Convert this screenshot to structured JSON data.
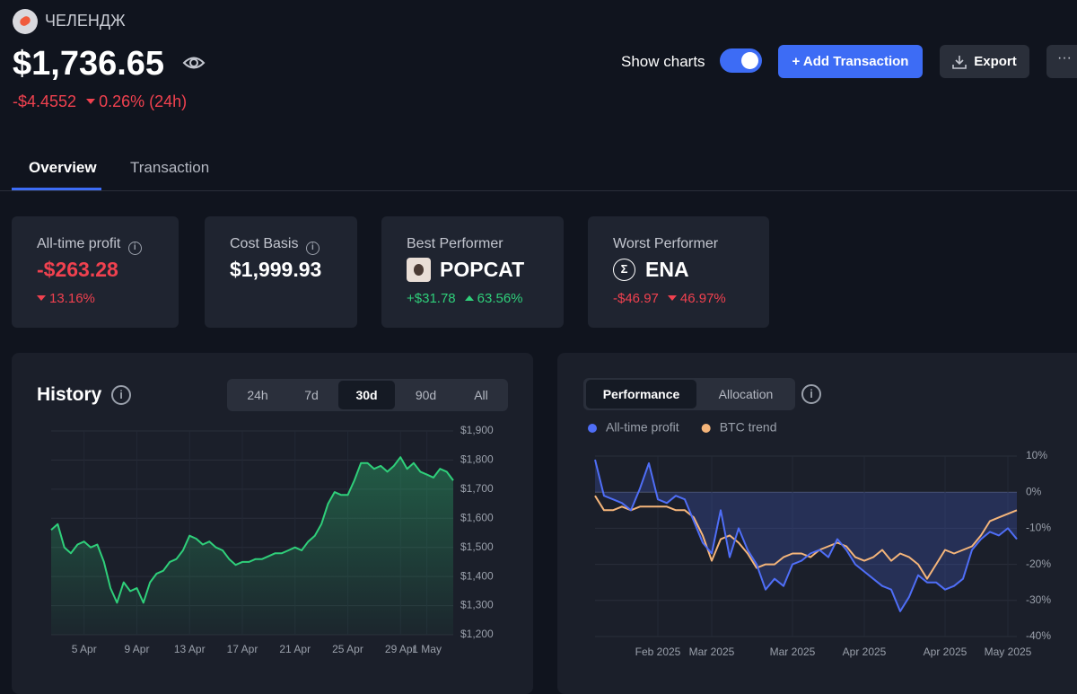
{
  "header": {
    "portfolio": "ЧЕЛЕНДЖ",
    "balance": "$1,736.65",
    "change": "-$4.4552",
    "change_pct": "0.26% (24h)"
  },
  "toolbar": {
    "show_charts": "Show charts",
    "add": "+ Add Transaction",
    "export": "Export"
  },
  "tabs": [
    "Overview",
    "Transaction"
  ],
  "cards": [
    {
      "label": "All-time profit",
      "value": "-$263.28",
      "change_pct": "13.16%"
    },
    {
      "label": "Cost Basis",
      "value": "$1,999.93"
    },
    {
      "label": "Best Performer",
      "asset": "POPCAT",
      "change": "+$31.78",
      "change_pct": "63.56%"
    },
    {
      "label": "Worst Performer",
      "asset": "ENA",
      "change": "-$46.97",
      "change_pct": "46.97%"
    }
  ],
  "history_ranges": [
    "24h",
    "7d",
    "30d",
    "90d",
    "All"
  ],
  "chart_tabs": [
    "Performance",
    "Allocation"
  ],
  "chart_data": [
    {
      "type": "line",
      "title": "History",
      "categories": [
        null,
        null,
        null,
        null,
        null,
        "5 Apr",
        null,
        null,
        null,
        null,
        null,
        null,
        null,
        "9 Apr",
        null,
        null,
        null,
        null,
        null,
        null,
        null,
        "13 Apr",
        null,
        null,
        null,
        null,
        null,
        null,
        null,
        "17 Apr",
        null,
        null,
        null,
        null,
        null,
        null,
        null,
        "21 Apr",
        null,
        null,
        null,
        null,
        null,
        null,
        null,
        "25 Apr",
        null,
        null,
        null,
        null,
        null,
        null,
        null,
        "29 Apr",
        null,
        null,
        null,
        "1 May",
        null,
        null,
        null,
        null
      ],
      "series": [
        {
          "color": "#2fcf7a",
          "area": true,
          "values": [
            1560,
            1580,
            1500,
            1480,
            1510,
            1520,
            1500,
            1510,
            1450,
            1360,
            1310,
            1380,
            1350,
            1360,
            1310,
            1380,
            1410,
            1420,
            1450,
            1460,
            1490,
            1540,
            1530,
            1510,
            1520,
            1500,
            1490,
            1460,
            1440,
            1450,
            1450,
            1460,
            1460,
            1470,
            1480,
            1480,
            1490,
            1500,
            1490,
            1520,
            1540,
            1580,
            1650,
            1690,
            1680,
            1680,
            1730,
            1790,
            1790,
            1770,
            1780,
            1760,
            1780,
            1810,
            1770,
            1790,
            1760,
            1750,
            1740,
            1770,
            1760,
            1730
          ]
        }
      ],
      "ylim": [
        1200,
        1900
      ],
      "yticks": [
        {
          "value": 1200,
          "label": "$1,200"
        },
        {
          "value": 1300,
          "label": "$1,300"
        },
        {
          "value": 1400,
          "label": "$1,400"
        },
        {
          "value": 1500,
          "label": "$1,500"
        },
        {
          "value": 1600,
          "label": "$1,600"
        },
        {
          "value": 1700,
          "label": "$1,700"
        },
        {
          "value": 1800,
          "label": "$1,800"
        },
        {
          "value": 1900,
          "label": "$1,900"
        }
      ],
      "grid": true
    },
    {
      "type": "line",
      "categories": [
        null,
        null,
        null,
        null,
        null,
        null,
        null,
        "Feb 2025",
        null,
        null,
        null,
        null,
        null,
        "Mar 2025",
        null,
        null,
        null,
        null,
        null,
        null,
        null,
        null,
        "Mar 2025",
        null,
        null,
        null,
        null,
        null,
        null,
        null,
        "Apr 2025",
        null,
        null,
        null,
        null,
        null,
        null,
        null,
        null,
        "Apr 2025",
        null,
        null,
        null,
        null,
        null,
        null,
        "May 2025",
        null
      ],
      "series": [
        {
          "name": "All-time profit",
          "color": "#4f6ef7",
          "area": true,
          "values": [
            9,
            -1,
            -2,
            -3,
            -5,
            1,
            8,
            -2,
            -3,
            -1,
            -2,
            -8,
            -14,
            -17,
            -5,
            -18,
            -10,
            -16,
            -20,
            -27,
            -24,
            -26,
            -20,
            -19,
            -17,
            -16,
            -18,
            -13,
            -16,
            -20,
            -22,
            -24,
            -26,
            -27,
            -33,
            -29,
            -23,
            -25,
            -25,
            -27,
            -26,
            -24,
            -16,
            -13,
            -11,
            -12,
            -10,
            -13
          ]
        },
        {
          "name": "BTC trend",
          "color": "#f5b57a",
          "values": [
            -1,
            -5,
            -5,
            -4,
            -5,
            -4,
            -4,
            -4,
            -4,
            -5,
            -5,
            -7,
            -12,
            -19,
            -13,
            -12,
            -14,
            -17,
            -21,
            -20,
            -20,
            -18,
            -17,
            -17,
            -18,
            -16,
            -15,
            -14,
            -15,
            -18,
            -19,
            -18,
            -16,
            -19,
            -17,
            -18,
            -20,
            -24,
            -20,
            -16,
            -17,
            -16,
            -15,
            -12,
            -8,
            -7,
            -6,
            -5
          ]
        }
      ],
      "ylim": [
        -40,
        10
      ],
      "yticks": [
        {
          "value": 10,
          "label": "10%"
        },
        {
          "value": 0,
          "label": "0%"
        },
        {
          "value": -10,
          "label": "-10%"
        },
        {
          "value": -20,
          "label": "-20%"
        },
        {
          "value": -30,
          "label": "-30%"
        },
        {
          "value": -40,
          "label": "-40%"
        }
      ],
      "grid": true,
      "legend": "top-left"
    }
  ]
}
